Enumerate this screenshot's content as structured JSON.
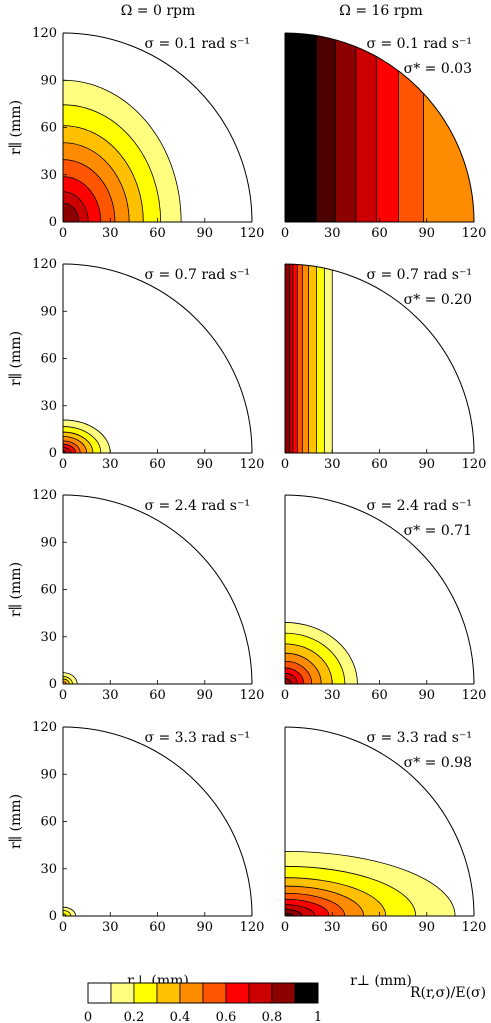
{
  "figure": {
    "column_titles": [
      "Ω = 0 rpm",
      "Ω = 16 rpm"
    ],
    "ylabel": "r∥ (mm)",
    "xlabel": "r⊥ (mm)",
    "colorbar": {
      "label": "R(r,σ)/E(σ)",
      "tick_labels": [
        "0",
        "0.2",
        "0.4",
        "0.6",
        "0.8",
        "1"
      ],
      "levels": [
        0,
        0.1,
        0.2,
        0.3,
        0.4,
        0.5,
        0.6,
        0.7,
        0.8,
        0.9,
        1.0
      ],
      "colors": [
        "#ffffff",
        "#ffff7f",
        "#ffff00",
        "#ffc000",
        "#ff8c00",
        "#ff5500",
        "#ff0000",
        "#cc0000",
        "#8c0000",
        "#4c0000",
        "#000000"
      ]
    }
  },
  "chart_data": [
    {
      "type": "contour",
      "row": 1,
      "col": 1,
      "sigma_label": "σ = 0.1 rad s⁻¹",
      "sigma_star_label": "",
      "mode": "radial",
      "radii_mm": [
        75,
        62,
        51,
        42,
        33,
        24,
        16,
        10
      ],
      "vertical_extent_ratio": 1.2,
      "xticks": [
        "0",
        "30",
        "60",
        "90",
        "120"
      ],
      "yticks": [
        "0",
        "30",
        "60",
        "90",
        "120"
      ],
      "xlim": [
        0,
        120
      ],
      "ylim": [
        0,
        120
      ]
    },
    {
      "type": "contour",
      "row": 1,
      "col": 2,
      "sigma_label": "σ = 0.1 rad s⁻¹",
      "sigma_star_label": "σ* = 0.03",
      "mode": "bands",
      "band_edges_mm": [
        0,
        20,
        32,
        45,
        58,
        72,
        88,
        120
      ],
      "xticks": [
        "0",
        "30",
        "60",
        "90",
        "120"
      ],
      "yticks": [],
      "xlim": [
        0,
        120
      ],
      "ylim": [
        0,
        120
      ]
    },
    {
      "type": "contour",
      "row": 2,
      "col": 1,
      "sigma_label": "σ = 0.7 rad s⁻¹",
      "sigma_star_label": "",
      "mode": "radial",
      "radii_mm": [
        30,
        24,
        19,
        15,
        11,
        8,
        5,
        2
      ],
      "vertical_extent_ratio": 0.7,
      "xticks": [
        "0",
        "30",
        "60",
        "90",
        "120"
      ],
      "yticks": [
        "0",
        "30",
        "60",
        "90",
        "120"
      ],
      "xlim": [
        0,
        120
      ],
      "ylim": [
        0,
        120
      ]
    },
    {
      "type": "contour",
      "row": 2,
      "col": 2,
      "sigma_label": "σ = 0.7 rad s⁻¹",
      "sigma_star_label": "σ* = 0.20",
      "mode": "columns",
      "column_edges_mm": [
        30,
        25,
        20,
        15,
        11,
        8,
        5,
        3
      ],
      "xticks": [
        "0",
        "30",
        "60",
        "90",
        "120"
      ],
      "yticks": [],
      "xlim": [
        0,
        120
      ],
      "ylim": [
        0,
        120
      ]
    },
    {
      "type": "contour",
      "row": 3,
      "col": 1,
      "sigma_label": "σ = 2.4 rad s⁻¹",
      "sigma_star_label": "",
      "mode": "radial",
      "radii_mm": [
        9,
        6,
        4,
        2
      ],
      "vertical_extent_ratio": 0.8,
      "xticks": [
        "0",
        "30",
        "60",
        "90",
        "120"
      ],
      "yticks": [
        "0",
        "30",
        "60",
        "90",
        "120"
      ],
      "xlim": [
        0,
        120
      ],
      "ylim": [
        0,
        120
      ]
    },
    {
      "type": "contour",
      "row": 3,
      "col": 2,
      "sigma_label": "σ = 2.4 rad s⁻¹",
      "sigma_star_label": "σ* = 0.71",
      "mode": "radial",
      "radii_mm": [
        46,
        38,
        30,
        23,
        17,
        12,
        8,
        4
      ],
      "vertical_extent_ratio": 0.85,
      "xticks": [
        "0",
        "30",
        "60",
        "90",
        "120"
      ],
      "yticks": [],
      "xlim": [
        0,
        120
      ],
      "ylim": [
        0,
        120
      ]
    },
    {
      "type": "contour",
      "row": 4,
      "col": 1,
      "sigma_label": "σ = 3.3 rad s⁻¹",
      "sigma_star_label": "",
      "mode": "radial",
      "radii_mm": [
        8,
        5,
        2
      ],
      "vertical_extent_ratio": 0.7,
      "xticks": [
        "0",
        "30",
        "60",
        "90",
        "120"
      ],
      "yticks": [
        "0",
        "30",
        "60",
        "90",
        "120"
      ],
      "xlim": [
        0,
        120
      ],
      "ylim": [
        0,
        120
      ]
    },
    {
      "type": "contour",
      "row": 4,
      "col": 2,
      "sigma_label": "σ = 3.3 rad s⁻¹",
      "sigma_star_label": "σ* = 0.98",
      "mode": "radial",
      "radii_mm": [
        108,
        83,
        64,
        50,
        38,
        28,
        19,
        11,
        5
      ],
      "vertical_extent_ratio": 0.38,
      "xticks": [
        "0",
        "30",
        "60",
        "90",
        "120"
      ],
      "yticks": [],
      "xlim": [
        0,
        120
      ],
      "ylim": [
        0,
        120
      ]
    }
  ]
}
